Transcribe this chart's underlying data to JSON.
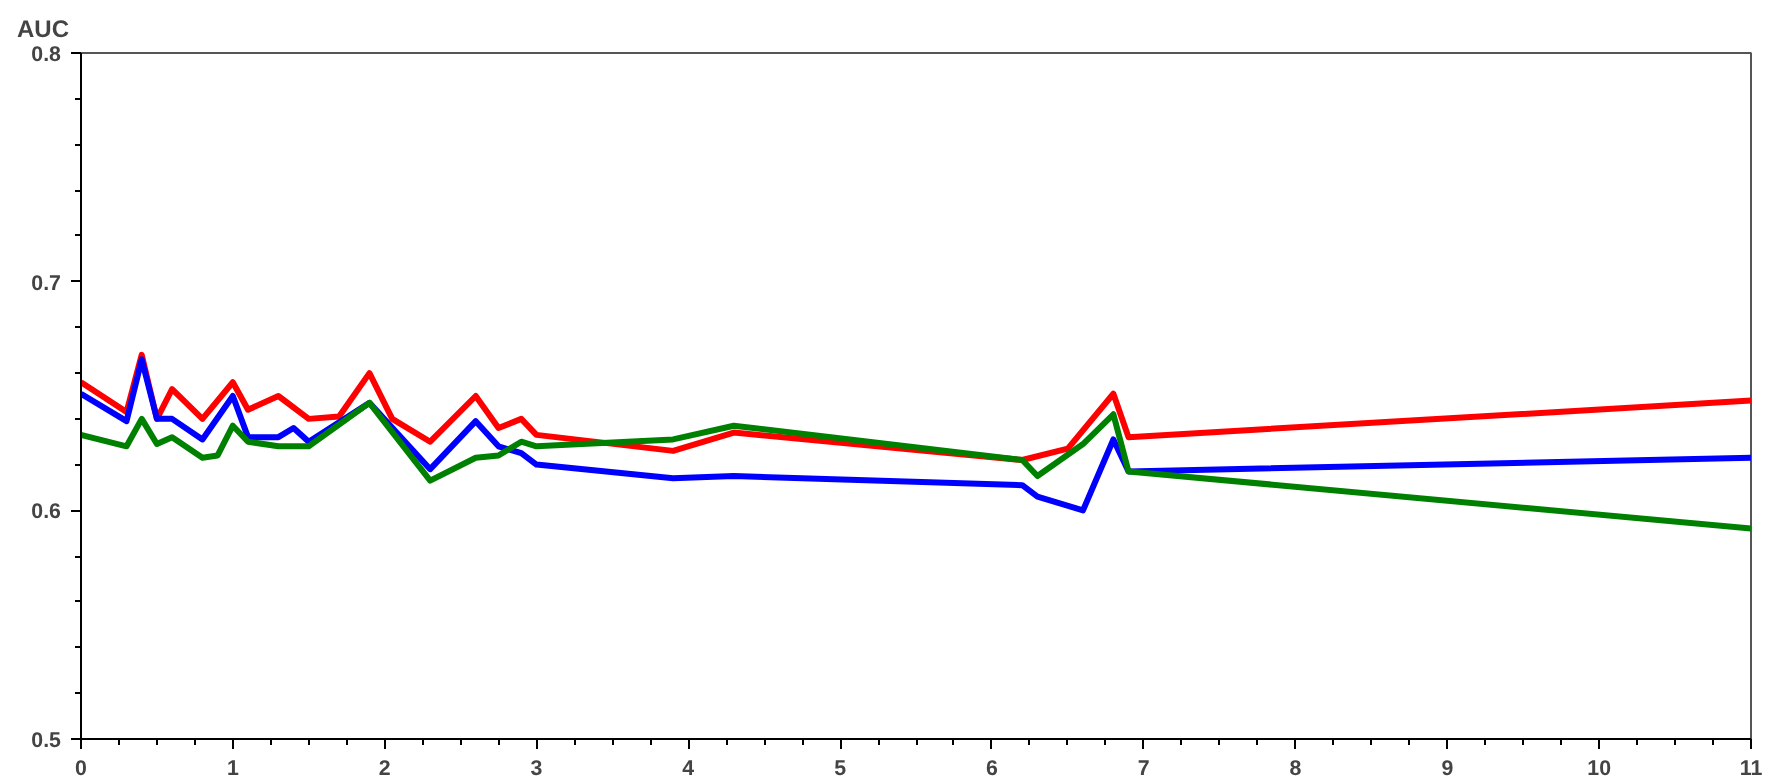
{
  "chart_data": {
    "type": "line",
    "ylabel": "AUC",
    "xlim": [
      0,
      11
    ],
    "ylim": [
      0.5,
      0.8
    ],
    "xticks": [
      0,
      1,
      2,
      3,
      4,
      5,
      6,
      7,
      8,
      9,
      10,
      11
    ],
    "yticks": [
      0.5,
      0.6,
      0.7,
      0.8
    ],
    "grid": false,
    "marker": "none",
    "line_style": "solid",
    "series": [
      {
        "color": "#ff0000",
        "x": [
          0,
          0.3,
          0.4,
          0.5,
          0.6,
          0.8,
          1.0,
          1.1,
          1.3,
          1.5,
          1.7,
          1.9,
          2.05,
          2.3,
          2.6,
          2.75,
          2.9,
          3.0,
          3.9,
          4.3,
          6.2,
          6.5,
          6.8,
          6.9,
          11
        ],
        "values": [
          0.656,
          0.643,
          0.668,
          0.64,
          0.653,
          0.64,
          0.656,
          0.644,
          0.65,
          0.64,
          0.641,
          0.66,
          0.64,
          0.63,
          0.65,
          0.636,
          0.64,
          0.633,
          0.626,
          0.634,
          0.622,
          0.627,
          0.651,
          0.632,
          0.648
        ]
      },
      {
        "color": "#0000ff",
        "x": [
          0,
          0.3,
          0.4,
          0.5,
          0.6,
          0.8,
          1.0,
          1.1,
          1.3,
          1.4,
          1.5,
          1.9,
          2.3,
          2.6,
          2.75,
          2.9,
          3.0,
          3.9,
          4.3,
          6.2,
          6.3,
          6.6,
          6.8,
          6.9,
          11
        ],
        "values": [
          0.651,
          0.639,
          0.666,
          0.64,
          0.64,
          0.631,
          0.65,
          0.632,
          0.632,
          0.636,
          0.63,
          0.647,
          0.618,
          0.639,
          0.628,
          0.625,
          0.62,
          0.614,
          0.615,
          0.611,
          0.606,
          0.6,
          0.631,
          0.617,
          0.623
        ]
      },
      {
        "color": "#008000",
        "x": [
          0,
          0.3,
          0.4,
          0.5,
          0.6,
          0.8,
          0.9,
          1.0,
          1.1,
          1.3,
          1.5,
          1.9,
          2.3,
          2.6,
          2.75,
          2.9,
          3.0,
          3.9,
          4.3,
          6.2,
          6.3,
          6.6,
          6.8,
          6.9,
          11
        ],
        "values": [
          0.633,
          0.628,
          0.64,
          0.629,
          0.632,
          0.623,
          0.624,
          0.637,
          0.63,
          0.628,
          0.628,
          0.647,
          0.613,
          0.623,
          0.624,
          0.63,
          0.628,
          0.631,
          0.637,
          0.622,
          0.615,
          0.629,
          0.642,
          0.617,
          0.592
        ]
      }
    ]
  }
}
